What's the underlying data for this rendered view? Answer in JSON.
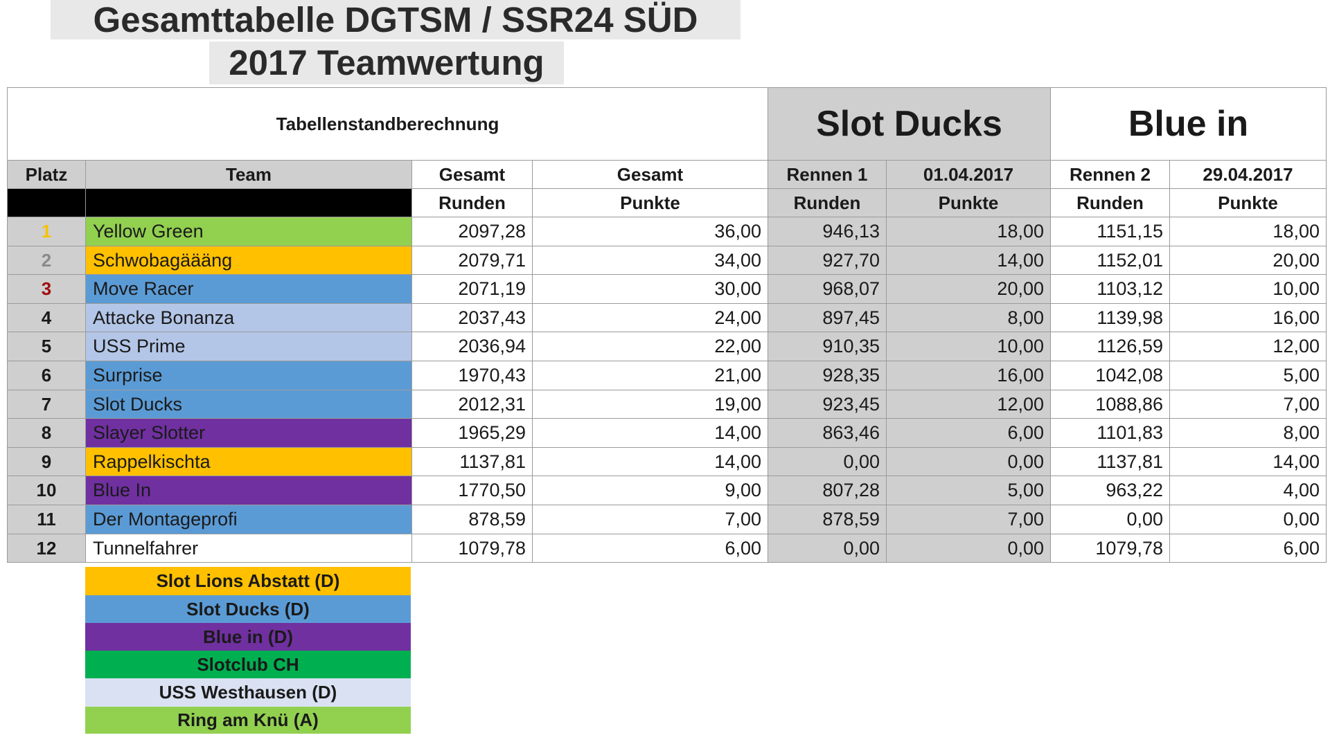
{
  "title_line1": "Gesamttabelle DGTSM / SSR24 SÜD",
  "title_line2": "2017 Teamwertung",
  "header": {
    "calc_label": "Tabellenstandberechnung",
    "race1_team": "Slot Ducks",
    "race2_team": "Blue in",
    "platz": "Platz",
    "team": "Team",
    "gesamt1": "Gesamt",
    "gesamt2": "Gesamt",
    "rennen1": "Rennen 1",
    "date1": "01.04.2017",
    "rennen2": "Rennen 2",
    "date2": "29.04.2017",
    "runden_a": "Runden",
    "punkte_a": "Punkte",
    "runden_b": "Runden",
    "punkte_b": "Punkte",
    "runden_c": "Runden",
    "punkte_c": "Punkte"
  },
  "rows": [
    {
      "rank": "1",
      "rank_color": "#f5c200",
      "team": "Yellow Green",
      "team_color": "#92d050",
      "gesamt_runden": "2097,28",
      "gesamt_punkte": "36,00",
      "r1_runden": "946,13",
      "r1_punkte": "18,00",
      "r2_runden": "1151,15",
      "r2_punkte": "18,00"
    },
    {
      "rank": "2",
      "rank_color": "#8a8a8a",
      "team": "Schwobagäääng",
      "team_color": "#ffc000",
      "gesamt_runden": "2079,71",
      "gesamt_punkte": "34,00",
      "r1_runden": "927,70",
      "r1_punkte": "14,00",
      "r2_runden": "1152,01",
      "r2_punkte": "20,00"
    },
    {
      "rank": "3",
      "rank_color": "#a01010",
      "team": "Move Racer",
      "team_color": "#5b9bd5",
      "gesamt_runden": "2071,19",
      "gesamt_punkte": "30,00",
      "r1_runden": "968,07",
      "r1_punkte": "20,00",
      "r2_runden": "1103,12",
      "r2_punkte": "10,00"
    },
    {
      "rank": "4",
      "rank_color": "#1a1a1a",
      "team": "Attacke Bonanza",
      "team_color": "#b4c6e7",
      "gesamt_runden": "2037,43",
      "gesamt_punkte": "24,00",
      "r1_runden": "897,45",
      "r1_punkte": "8,00",
      "r2_runden": "1139,98",
      "r2_punkte": "16,00"
    },
    {
      "rank": "5",
      "rank_color": "#1a1a1a",
      "team": "USS Prime",
      "team_color": "#b4c6e7",
      "gesamt_runden": "2036,94",
      "gesamt_punkte": "22,00",
      "r1_runden": "910,35",
      "r1_punkte": "10,00",
      "r2_runden": "1126,59",
      "r2_punkte": "12,00"
    },
    {
      "rank": "6",
      "rank_color": "#1a1a1a",
      "team": "Surprise",
      "team_color": "#5b9bd5",
      "gesamt_runden": "1970,43",
      "gesamt_punkte": "21,00",
      "r1_runden": "928,35",
      "r1_punkte": "16,00",
      "r2_runden": "1042,08",
      "r2_punkte": "5,00"
    },
    {
      "rank": "7",
      "rank_color": "#1a1a1a",
      "team": "Slot Ducks",
      "team_color": "#5b9bd5",
      "gesamt_runden": "2012,31",
      "gesamt_punkte": "19,00",
      "r1_runden": "923,45",
      "r1_punkte": "12,00",
      "r2_runden": "1088,86",
      "r2_punkte": "7,00"
    },
    {
      "rank": "8",
      "rank_color": "#1a1a1a",
      "team": "Slayer Slotter",
      "team_color": "#7030a0",
      "gesamt_runden": "1965,29",
      "gesamt_punkte": "14,00",
      "r1_runden": "863,46",
      "r1_punkte": "6,00",
      "r2_runden": "1101,83",
      "r2_punkte": "8,00"
    },
    {
      "rank": "9",
      "rank_color": "#1a1a1a",
      "team": "Rappelkischta",
      "team_color": "#ffc000",
      "gesamt_runden": "1137,81",
      "gesamt_punkte": "14,00",
      "r1_runden": "0,00",
      "r1_punkte": "0,00",
      "r2_runden": "1137,81",
      "r2_punkte": "14,00"
    },
    {
      "rank": "10",
      "rank_color": "#1a1a1a",
      "team": "Blue In",
      "team_color": "#7030a0",
      "gesamt_runden": "1770,50",
      "gesamt_punkte": "9,00",
      "r1_runden": "807,28",
      "r1_punkte": "5,00",
      "r2_runden": "963,22",
      "r2_punkte": "4,00"
    },
    {
      "rank": "11",
      "rank_color": "#1a1a1a",
      "team": "Der Montageprofi",
      "team_color": "#5b9bd5",
      "gesamt_runden": "878,59",
      "gesamt_punkte": "7,00",
      "r1_runden": "878,59",
      "r1_punkte": "7,00",
      "r2_runden": "0,00",
      "r2_punkte": "0,00"
    },
    {
      "rank": "12",
      "rank_color": "#1a1a1a",
      "team": "Tunnelfahrer",
      "team_color": "#ffffff",
      "gesamt_runden": "1079,78",
      "gesamt_punkte": "6,00",
      "r1_runden": "0,00",
      "r1_punkte": "0,00",
      "r2_runden": "1079,78",
      "r2_punkte": "6,00"
    }
  ],
  "legend": [
    {
      "label": "Slot Lions Abstatt (D)",
      "color": "#ffc000"
    },
    {
      "label": "Slot Ducks (D)",
      "color": "#5b9bd5"
    },
    {
      "label": "Blue in (D)",
      "color": "#7030a0"
    },
    {
      "label": "Slotclub CH",
      "color": "#00b050"
    },
    {
      "label": "USS Westhausen (D)",
      "color": "#d9e1f2"
    },
    {
      "label": "Ring am Knü (A)",
      "color": "#92d050"
    }
  ],
  "colors": {
    "gray_header": "#cfcfcf",
    "black_bar": "#000000",
    "grid": "#9a9a9a"
  }
}
